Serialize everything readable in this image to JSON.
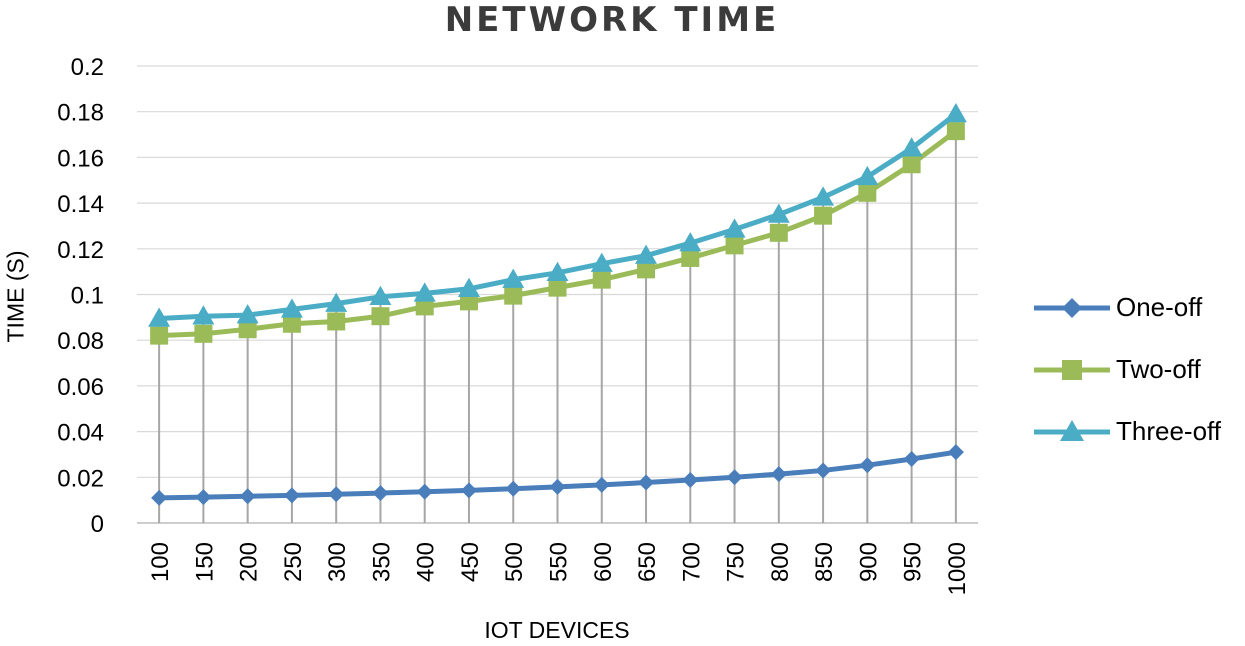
{
  "chart_data": {
    "type": "line",
    "title": "NETWORK TIME",
    "xlabel": "IOT DEVICES",
    "ylabel": "TIME (S)",
    "categories": [
      "100",
      "150",
      "200",
      "250",
      "300",
      "350",
      "400",
      "450",
      "500",
      "550",
      "600",
      "650",
      "700",
      "750",
      "800",
      "850",
      "900",
      "950",
      "1000"
    ],
    "ylim": [
      0,
      0.2
    ],
    "yticks": [
      "0",
      "0.02",
      "0.04",
      "0.06",
      "0.08",
      "0.1",
      "0.12",
      "0.14",
      "0.16",
      "0.18",
      "0.2"
    ],
    "grid": "vertical drop lines",
    "legend_position": "right",
    "series": [
      {
        "name": "One-off",
        "color": "#4a7ebb",
        "marker": "diamond",
        "values": [
          0.011,
          0.0113,
          0.0117,
          0.0121,
          0.0126,
          0.0131,
          0.0137,
          0.0143,
          0.015,
          0.0158,
          0.0167,
          0.0177,
          0.0188,
          0.02,
          0.0214,
          0.023,
          0.0253,
          0.028,
          0.031
        ]
      },
      {
        "name": "Two-off",
        "color": "#9bbb59",
        "marker": "square",
        "values": [
          0.082,
          0.0828,
          0.0848,
          0.0872,
          0.0882,
          0.0905,
          0.0948,
          0.097,
          0.0995,
          0.103,
          0.1065,
          0.111,
          0.116,
          0.1215,
          0.127,
          0.1345,
          0.1445,
          0.157,
          0.1715
        ]
      },
      {
        "name": "Three-off",
        "color": "#4bacc6",
        "marker": "triangle",
        "values": [
          0.0895,
          0.0905,
          0.091,
          0.0935,
          0.096,
          0.099,
          0.1005,
          0.1025,
          0.1065,
          0.1095,
          0.1135,
          0.117,
          0.1225,
          0.1285,
          0.135,
          0.1425,
          0.1515,
          0.164,
          0.179
        ]
      }
    ]
  }
}
